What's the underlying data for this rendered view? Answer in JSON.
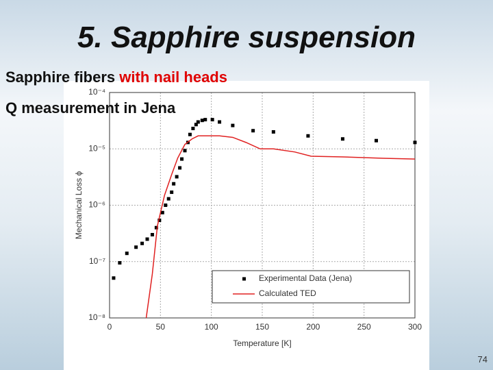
{
  "slide": {
    "title": "5. Sapphire suspension",
    "lines": [
      [
        "Sapphire fibers",
        "with nail heads"
      ],
      [
        "Q measurement in Jena"
      ]
    ],
    "page_number": "74"
  },
  "chart_data": {
    "type": "line",
    "xlabel": "Temperature [K]",
    "ylabel": "Mechanical Loss ϕ",
    "xlim": [
      0,
      300
    ],
    "xticks": [
      0,
      50,
      100,
      150,
      200,
      250,
      300
    ],
    "ylim": [
      1e-08,
      0.0001
    ],
    "ylog": true,
    "yticks": [
      {
        "value": 1e-08,
        "label": "10⁻⁸"
      },
      {
        "value": 1e-07,
        "label": "10⁻⁷"
      },
      {
        "value": 1e-06,
        "label": "10⁻⁶"
      },
      {
        "value": 1e-05,
        "label": "10⁻⁵"
      },
      {
        "value": 0.0001,
        "label": "10⁻⁴"
      }
    ],
    "grid": true,
    "legend": "lower right",
    "series": [
      {
        "name": "Experimental Data (Jena)",
        "type": "scatter",
        "color": "#000000",
        "x": [
          4,
          10,
          17,
          26,
          32,
          37,
          42,
          46,
          49,
          52,
          55,
          58,
          61,
          63,
          66,
          69,
          71,
          74,
          77,
          79,
          82,
          85,
          87,
          91,
          94,
          101,
          108,
          121,
          141,
          161,
          195,
          229,
          262,
          300
        ],
        "values": [
          5.1e-08,
          9.5e-08,
          1.4e-07,
          1.8e-07,
          2.1e-07,
          2.5e-07,
          3e-07,
          4e-07,
          5.4e-07,
          7.4e-07,
          1e-06,
          1.3e-06,
          1.7e-06,
          2.4e-06,
          3.2e-06,
          4.6e-06,
          6.6e-06,
          9.3e-06,
          1.3e-05,
          1.8e-05,
          2.3e-05,
          2.7e-05,
          3e-05,
          3.2e-05,
          3.3e-05,
          3.3e-05,
          3e-05,
          2.6e-05,
          2.1e-05,
          2e-05,
          1.7e-05,
          1.5e-05,
          1.4e-05,
          1.3e-05
        ]
      },
      {
        "name": "Calculated TED",
        "type": "line",
        "color": "#e02020",
        "x": [
          36,
          42,
          47,
          54,
          61,
          67,
          74,
          81,
          87,
          94,
          108,
          121,
          134,
          148,
          161,
          182,
          198,
          229,
          269,
          300
        ],
        "values": [
          1e-08,
          6e-08,
          4.3e-07,
          1.5e-06,
          3.5e-06,
          6.9e-06,
          1.2e-05,
          1.5e-05,
          1.7e-05,
          1.7e-05,
          1.7e-05,
          1.6e-05,
          1.3e-05,
          1e-05,
          1e-05,
          8.8e-06,
          7.4e-06,
          7.2e-06,
          6.8e-06,
          6.6e-06
        ]
      }
    ]
  }
}
